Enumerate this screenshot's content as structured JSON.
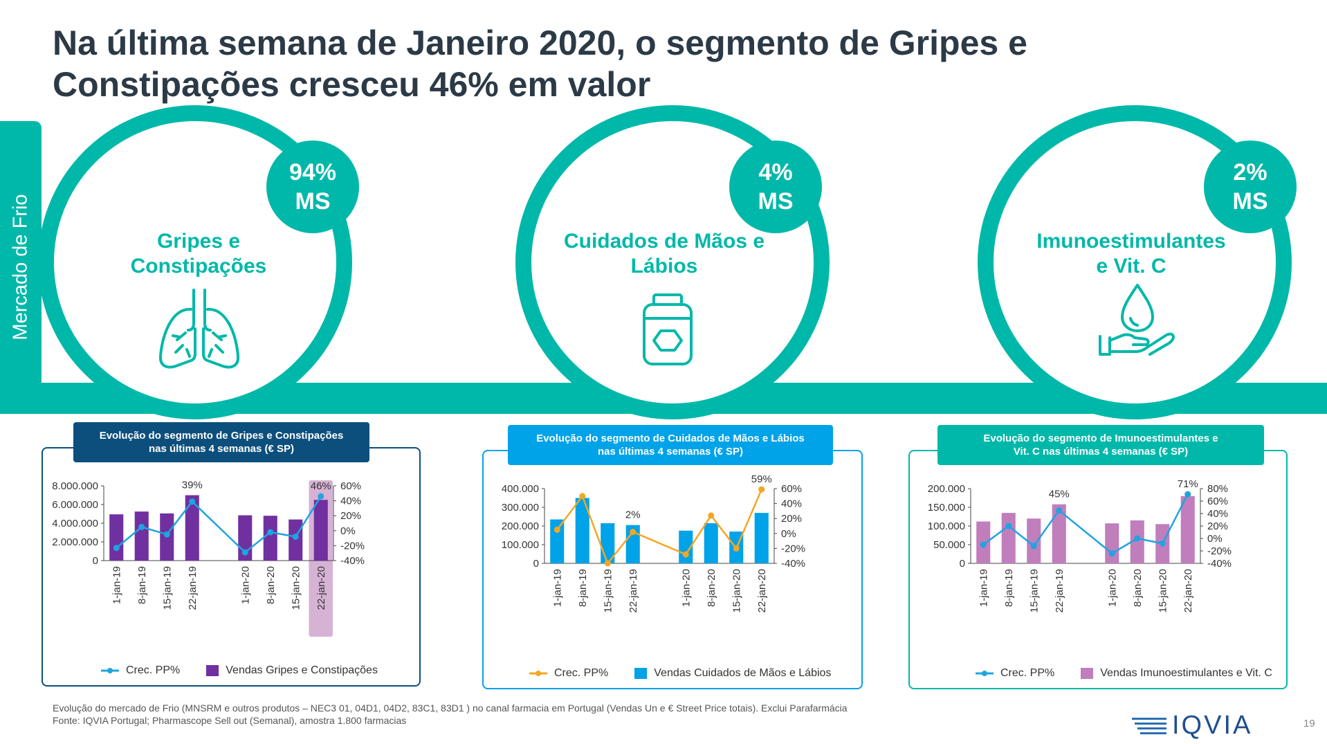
{
  "title_line1": "Na última semana de Janeiro 2020, o segmento de Gripes e",
  "title_line2": "Constipações cresceu 46% em valor",
  "side_label": "Mercado de Frio",
  "colors": {
    "teal": "#00b8a9",
    "purple": "#7030a0",
    "blue": "#00a2e8",
    "pink": "#c07ebd",
    "line_blue": "#1fa4e0",
    "line_orange": "#f5a623",
    "navy": "#0d4f7c"
  },
  "segments": [
    {
      "ms_value": "94%",
      "ms_unit": "MS",
      "name_line1": "Gripes e",
      "name_line2": "Constipações",
      "icon": "lungs-icon"
    },
    {
      "ms_value": "4%",
      "ms_unit": "MS",
      "name_line1": "Cuidados de Mãos e",
      "name_line2": "Lábios",
      "icon": "jar-icon"
    },
    {
      "ms_value": "2%",
      "ms_unit": "MS",
      "name_line1": "Imunoestimulantes",
      "name_line2": "e Vit. C",
      "icon": "drop-hand-icon"
    }
  ],
  "panels": [
    {
      "title_line1": "Evolução do segmento de Gripes e Constipações",
      "title_line2": "nas últimas 4 semanas (€ SP)",
      "legend_line": "Crec. PP%",
      "legend_bar": "Vendas  Gripes e Constipações"
    },
    {
      "title_line1": "Evolução do segmento de Cuidados de Mãos e Lábios",
      "title_line2": "nas últimas 4 semanas (€ SP)",
      "legend_line": "Crec. PP%",
      "legend_bar": "Vendas Cuidados de Mãos e Lábios"
    },
    {
      "title_line1": "Evolução do segmento de Imunoestimulantes e",
      "title_line2": "Vit. C nas últimas 4 semanas (€ SP)",
      "legend_line": "Crec. PP%",
      "legend_bar": "Vendas Imunoestimulantes e Vit. C"
    }
  ],
  "chart_data": [
    {
      "type": "bar",
      "categories": [
        "1-jan-19",
        "8-jan-19",
        "15-jan-19",
        "22-jan-19",
        "1-jan-20",
        "8-jan-20",
        "15-jan-20",
        "22-jan-20"
      ],
      "series": [
        {
          "name": "Vendas  Gripes e Constipações",
          "type": "bar",
          "values": [
            4950000,
            5250000,
            5050000,
            7000000,
            4850000,
            4800000,
            4400000,
            6500000
          ]
        },
        {
          "name": "Crec. PP%",
          "type": "line",
          "axis": "right",
          "values": [
            -23,
            5,
            -5,
            39,
            -29,
            -2,
            -8,
            46
          ]
        }
      ],
      "data_labels": [
        {
          "index": 3,
          "text": "39%"
        },
        {
          "index": 7,
          "text": "46%"
        }
      ],
      "highlight_index": 7,
      "yticks": [
        "8.000.000",
        "6.000.000",
        "4.000.000",
        "2.000.000",
        "0"
      ],
      "ylim": [
        0,
        8000000
      ],
      "y2ticks": [
        "60%",
        "40%",
        "20%",
        "0%",
        "-20%",
        "-40%"
      ],
      "y2lim": [
        -40,
        60
      ]
    },
    {
      "type": "bar",
      "categories": [
        "1-jan-19",
        "8-jan-19",
        "15-jan-19",
        "22-jan-19",
        "1-jan-20",
        "8-jan-20",
        "15-jan-20",
        "22-jan-20"
      ],
      "series": [
        {
          "name": "Vendas Cuidados de Mãos e Lábios",
          "type": "bar",
          "values": [
            235000,
            350000,
            215000,
            205000,
            175000,
            215000,
            170000,
            270000
          ]
        },
        {
          "name": "Crec. PP%",
          "type": "line",
          "axis": "right",
          "values": [
            5,
            50,
            -40,
            2,
            -28,
            24,
            -20,
            59
          ]
        }
      ],
      "data_labels": [
        {
          "index": 3,
          "text": "2%"
        },
        {
          "index": 7,
          "text": "59%"
        }
      ],
      "yticks": [
        "400.000",
        "300.000",
        "200.000",
        "100.000",
        "0"
      ],
      "ylim": [
        0,
        400000
      ],
      "y2ticks": [
        "60%",
        "40%",
        "20%",
        "0%",
        "-20%",
        "-40%"
      ],
      "y2lim": [
        -40,
        60
      ]
    },
    {
      "type": "bar",
      "categories": [
        "1-jan-19",
        "8-jan-19",
        "15-jan-19",
        "22-jan-19",
        "1-jan-20",
        "8-jan-20",
        "15-jan-20",
        "22-jan-20"
      ],
      "series": [
        {
          "name": "Vendas Imunoestimulantes e Vit. C",
          "type": "bar",
          "values": [
            112000,
            135000,
            120000,
            158000,
            107000,
            115000,
            105000,
            180000
          ]
        },
        {
          "name": "Crec. PP%",
          "type": "line",
          "axis": "right",
          "values": [
            -10,
            20,
            -12,
            45,
            -24,
            0,
            -8,
            71
          ]
        }
      ],
      "data_labels": [
        {
          "index": 3,
          "text": "45%"
        },
        {
          "index": 7,
          "text": "71%"
        }
      ],
      "yticks": [
        "200.000",
        "150.000",
        "100.000",
        "50.000",
        "0"
      ],
      "ylim": [
        0,
        200000
      ],
      "y2ticks": [
        "80%",
        "60%",
        "40%",
        "20%",
        "0%",
        "-20%",
        "-40%"
      ],
      "y2lim": [
        -40,
        80
      ]
    }
  ],
  "footnote_line1": "Evolução do mercado de Frio (MNSRM e outros produtos – NEC3 01, 04D1, 04D2, 83C1, 83D1 ) no canal farmacia em Portugal (Vendas Un e € Street Price totais). Exclui Parafarmácia",
  "footnote_line2": "Fonte: IQVIA Portugal; Pharmascope Sell out (Semanal), amostra 1.800 farmacias",
  "logo_text": "IQVIA",
  "page_number": "19"
}
